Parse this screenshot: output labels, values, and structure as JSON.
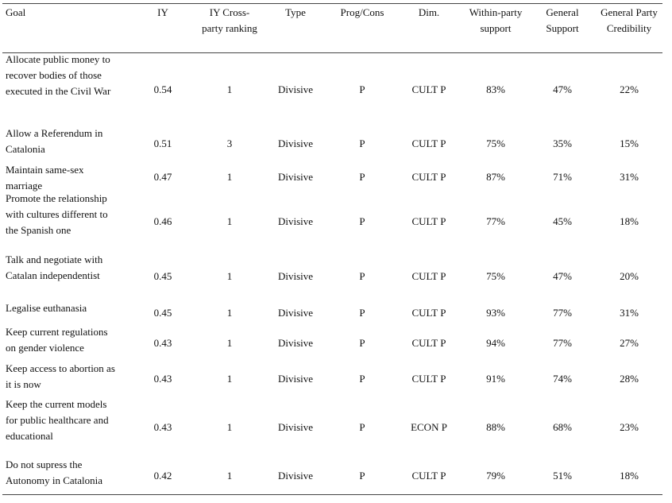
{
  "headers": {
    "goal": "Goal",
    "iy": "IY",
    "rank_line1": "IY Cross-",
    "rank_line2": "party ranking",
    "type": "Type",
    "prog": "Prog/Cons",
    "dim": "Dim.",
    "within_line1": "Within-party",
    "within_line2": "support",
    "gensup_line1": "General",
    "gensup_line2": "Support",
    "cred_line1": "General Party",
    "cred_line2": "Credibility"
  },
  "rows": [
    {
      "goal": [
        "Allocate public money to",
        "recover bodies of those",
        "executed in the Civil War"
      ],
      "iy": "0.54",
      "rank": "1",
      "type": "Divisive",
      "prog": "P",
      "dim": "CULT P",
      "within": "83%",
      "gensup": "47%",
      "cred": "22%"
    },
    {
      "goal": [
        "Allow a Referendum in",
        "Catalonia"
      ],
      "iy": "0.51",
      "rank": "3",
      "type": "Divisive",
      "prog": "P",
      "dim": "CULT P",
      "within": "75%",
      "gensup": "35%",
      "cred": "15%"
    },
    {
      "goal": [
        "Maintain same-sex",
        "marriage"
      ],
      "iy": "0.47",
      "rank": "1",
      "type": "Divisive",
      "prog": "P",
      "dim": "CULT P",
      "within": "87%",
      "gensup": "71%",
      "cred": "31%"
    },
    {
      "goal": [
        "Promote the relationship",
        "with cultures different to",
        "the Spanish one"
      ],
      "iy": "0.46",
      "rank": "1",
      "type": "Divisive",
      "prog": "P",
      "dim": "CULT P",
      "within": "77%",
      "gensup": "45%",
      "cred": "18%"
    },
    {
      "goal": [
        "Talk and negotiate with",
        "Catalan independentist"
      ],
      "iy": "0.45",
      "rank": "1",
      "type": "Divisive",
      "prog": "P",
      "dim": "CULT P",
      "within": "75%",
      "gensup": "47%",
      "cred": "20%"
    },
    {
      "goal": [
        "Legalise euthanasia"
      ],
      "iy": "0.45",
      "rank": "1",
      "type": "Divisive",
      "prog": "P",
      "dim": "CULT P",
      "within": "93%",
      "gensup": "77%",
      "cred": "31%"
    },
    {
      "goal": [
        "Keep current regulations",
        "on gender violence"
      ],
      "iy": "0.43",
      "rank": "1",
      "type": "Divisive",
      "prog": "P",
      "dim": "CULT P",
      "within": "94%",
      "gensup": "77%",
      "cred": "27%"
    },
    {
      "goal": [
        "Keep access to abortion as",
        "it is now"
      ],
      "iy": "0.43",
      "rank": "1",
      "type": "Divisive",
      "prog": "P",
      "dim": "CULT P",
      "within": "91%",
      "gensup": "74%",
      "cred": "28%"
    },
    {
      "goal": [
        "Keep the current models",
        "for public healthcare and",
        "educational"
      ],
      "iy": "0.43",
      "rank": "1",
      "type": "Divisive",
      "prog": "P",
      "dim": "ECON P",
      "within": "88%",
      "gensup": "68%",
      "cred": "23%"
    },
    {
      "goal": [
        "Do not supress the",
        "Autonomy in Catalonia"
      ],
      "iy": "0.42",
      "rank": "1",
      "type": "Divisive",
      "prog": "P",
      "dim": "CULT P",
      "within": "79%",
      "gensup": "51%",
      "cred": "18%"
    }
  ]
}
